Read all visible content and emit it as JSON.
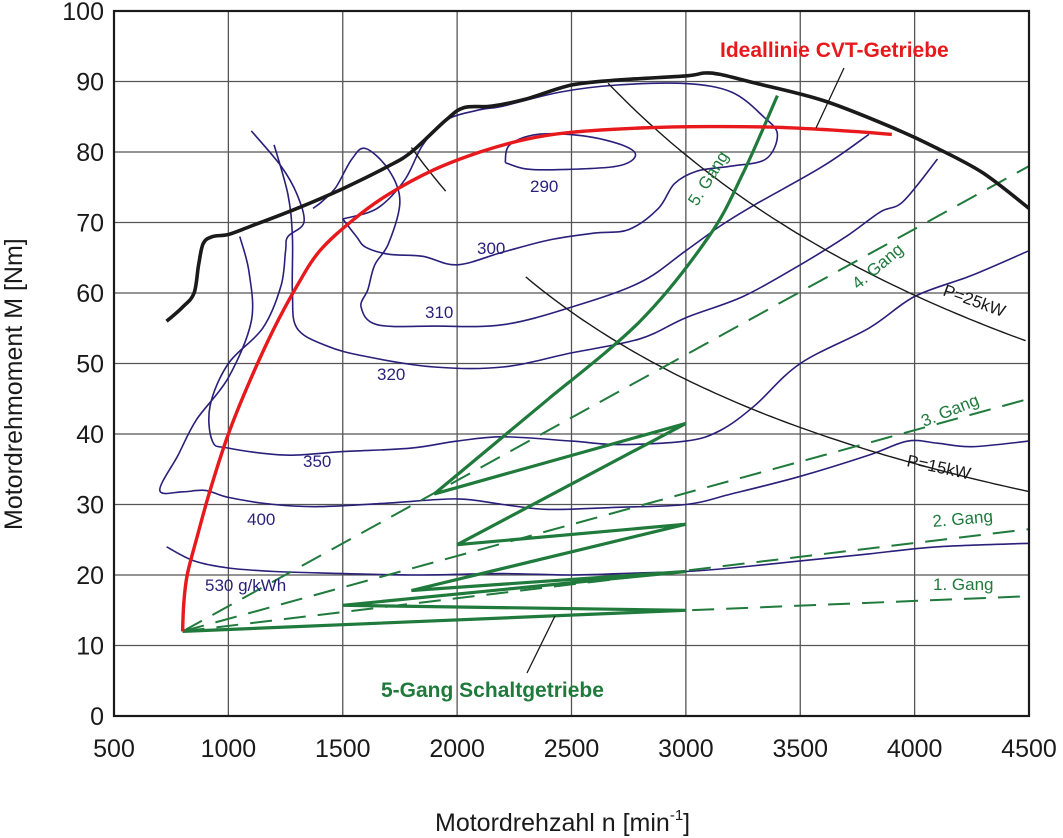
{
  "chart_data": {
    "type": "line",
    "title": "",
    "xlabel": "Motordrehzahl n   [min⁻¹]",
    "xlabel_main": "Motordrehzahl n   [min",
    "xlabel_sup": "-1",
    "xlabel_end": "]",
    "ylabel": "Motordrehmoment M   [Nm]",
    "xlim": [
      500,
      4500
    ],
    "ylim": [
      0,
      100
    ],
    "grid": true,
    "x_ticks": [
      500,
      1000,
      1500,
      2000,
      2500,
      3000,
      3500,
      4000,
      4500
    ],
    "y_ticks": [
      0,
      10,
      20,
      30,
      40,
      50,
      60,
      70,
      80,
      90,
      100
    ],
    "colors": {
      "full_load": "#1a1a1a",
      "cvt": "#e8191c",
      "contour": "#2a1f7a",
      "gear": "#1f7a3c",
      "power": "#1a1a1a",
      "grid": "#555555"
    },
    "full_load_curve": {
      "name": "Volllast",
      "points": [
        [
          730,
          56
        ],
        [
          800,
          58
        ],
        [
          850,
          60
        ],
        [
          870,
          64
        ],
        [
          890,
          67
        ],
        [
          930,
          68
        ],
        [
          1000,
          68.3
        ],
        [
          1100,
          69.5
        ],
        [
          1300,
          72
        ],
        [
          1500,
          74.8
        ],
        [
          1700,
          78
        ],
        [
          1800,
          80
        ],
        [
          1950,
          84.5
        ],
        [
          2030,
          86.3
        ],
        [
          2150,
          86.5
        ],
        [
          2300,
          87.5
        ],
        [
          2500,
          89.5
        ],
        [
          2700,
          90.2
        ],
        [
          3000,
          90.8
        ],
        [
          3080,
          91.2
        ],
        [
          3150,
          91
        ],
        [
          3300,
          89.8
        ],
        [
          3600,
          87.3
        ],
        [
          3900,
          83.5
        ],
        [
          4100,
          80.5
        ],
        [
          4300,
          77
        ],
        [
          4500,
          72
        ]
      ]
    },
    "cvt_ideal_line": {
      "name": "Ideallinie CVT-Getriebe",
      "points": [
        [
          800,
          12
        ],
        [
          805,
          16
        ],
        [
          820,
          20
        ],
        [
          860,
          25
        ],
        [
          920,
          32
        ],
        [
          1000,
          40
        ],
        [
          1100,
          48
        ],
        [
          1200,
          55
        ],
        [
          1300,
          61
        ],
        [
          1400,
          66
        ],
        [
          1550,
          70.5
        ],
        [
          1700,
          74
        ],
        [
          1900,
          77.5
        ],
        [
          2100,
          80
        ],
        [
          2300,
          81.8
        ],
        [
          2500,
          82.8
        ],
        [
          2800,
          83.4
        ],
        [
          3100,
          83.6
        ],
        [
          3400,
          83.5
        ],
        [
          3700,
          83
        ],
        [
          3900,
          82.5
        ]
      ]
    },
    "bsfc_contours": [
      {
        "label": "290",
        "closed": true,
        "points": [
          [
            2210,
            78.5
          ],
          [
            2230,
            81
          ],
          [
            2350,
            82.5
          ],
          [
            2550,
            82.3
          ],
          [
            2720,
            81
          ],
          [
            2780,
            79.5
          ],
          [
            2700,
            78
          ],
          [
            2450,
            77.5
          ],
          [
            2300,
            77.6
          ],
          [
            2210,
            78.5
          ]
        ]
      },
      {
        "label": "300",
        "closed": false,
        "points": [
          [
            1500,
            70.5
          ],
          [
            1650,
            72
          ],
          [
            1770,
            76
          ],
          [
            1850,
            81
          ],
          [
            1950,
            84.5
          ],
          [
            2100,
            86
          ],
          [
            2200,
            86.5
          ],
          [
            2450,
            88.5
          ],
          [
            2700,
            89.5
          ],
          [
            3000,
            89.7
          ],
          [
            3200,
            88.5
          ],
          [
            3340,
            85
          ],
          [
            3400,
            82.5
          ],
          [
            3350,
            79
          ],
          [
            3200,
            78
          ],
          [
            3050,
            77.3
          ],
          [
            2950,
            75.5
          ],
          [
            2880,
            72
          ],
          [
            2750,
            69
          ],
          [
            2600,
            68.5
          ],
          [
            2400,
            67.5
          ],
          [
            2200,
            65.8
          ],
          [
            2000,
            64
          ],
          [
            1850,
            65.2
          ],
          [
            1700,
            65.5
          ],
          [
            1600,
            66.5
          ],
          [
            1560,
            68
          ],
          [
            1500,
            70.5
          ]
        ]
      },
      {
        "label": "310",
        "closed": false,
        "points": [
          [
            1370,
            72
          ],
          [
            1410,
            73
          ],
          [
            1470,
            75
          ],
          [
            1540,
            79
          ],
          [
            1600,
            80.5
          ],
          [
            1700,
            77.5
          ],
          [
            1750,
            73
          ],
          [
            1700,
            67
          ],
          [
            1640,
            64
          ],
          [
            1610,
            60.5
          ],
          [
            1580,
            58
          ],
          [
            1650,
            55.5
          ],
          [
            1900,
            55.3
          ],
          [
            2200,
            55.5
          ],
          [
            2500,
            58
          ],
          [
            2800,
            61.5
          ],
          [
            3000,
            66
          ],
          [
            3150,
            69.5
          ],
          [
            3300,
            72.5
          ],
          [
            3600,
            78
          ],
          [
            3800,
            82.5
          ]
        ]
      },
      {
        "label": "320",
        "closed": false,
        "points": [
          [
            1200,
            81
          ],
          [
            1260,
            74
          ],
          [
            1280,
            68
          ],
          [
            1280,
            60
          ],
          [
            1300,
            55
          ],
          [
            1430,
            52.5
          ],
          [
            1600,
            51
          ],
          [
            1900,
            49.5
          ],
          [
            2200,
            49.5
          ],
          [
            2500,
            51.5
          ],
          [
            2800,
            53.5
          ],
          [
            3000,
            56.5
          ],
          [
            3250,
            59.5
          ],
          [
            3500,
            64
          ],
          [
            3700,
            68
          ],
          [
            3850,
            71.5
          ],
          [
            3950,
            73
          ],
          [
            4100,
            79
          ]
        ]
      },
      {
        "label": "350",
        "closed": false,
        "points": [
          [
            1100,
            83
          ],
          [
            1230,
            78
          ],
          [
            1300,
            74
          ],
          [
            1330,
            70
          ],
          [
            1260,
            68
          ],
          [
            1250,
            66
          ],
          [
            1230,
            61
          ],
          [
            1150,
            55
          ],
          [
            1000,
            50
          ],
          [
            920,
            44
          ],
          [
            930,
            39
          ],
          [
            1000,
            38
          ],
          [
            1250,
            37
          ],
          [
            1500,
            37.5
          ],
          [
            1800,
            38
          ],
          [
            2000,
            39
          ],
          [
            2200,
            39.6
          ],
          [
            2500,
            39
          ],
          [
            2700,
            38.5
          ],
          [
            3000,
            39
          ],
          [
            3150,
            40.5
          ],
          [
            3300,
            44
          ],
          [
            3500,
            50
          ],
          [
            3800,
            55
          ],
          [
            4000,
            59.5
          ],
          [
            4250,
            62.5
          ],
          [
            4500,
            66
          ]
        ]
      },
      {
        "label": "400",
        "closed": false,
        "points": [
          [
            1050,
            68
          ],
          [
            1090,
            63
          ],
          [
            1100,
            56
          ],
          [
            1000,
            48
          ],
          [
            860,
            42
          ],
          [
            780,
            37
          ],
          [
            700,
            32
          ],
          [
            800,
            31.8
          ],
          [
            900,
            32
          ],
          [
            1000,
            31
          ],
          [
            1200,
            30
          ],
          [
            1400,
            29.7
          ],
          [
            1700,
            30.2
          ],
          [
            2000,
            30.8
          ],
          [
            2200,
            30
          ],
          [
            2400,
            29.3
          ],
          [
            2700,
            29.6
          ],
          [
            3000,
            30
          ],
          [
            3200,
            31.5
          ],
          [
            3500,
            34
          ],
          [
            3800,
            37
          ],
          [
            3970,
            39
          ],
          [
            4100,
            38.7
          ],
          [
            4250,
            38.2
          ],
          [
            4500,
            39
          ]
        ]
      },
      {
        "label": "530 g/kWh",
        "closed": false,
        "points": [
          [
            730,
            24
          ],
          [
            850,
            22
          ],
          [
            1000,
            21
          ],
          [
            1200,
            20.5
          ],
          [
            1400,
            20.3
          ],
          [
            1800,
            20
          ],
          [
            2200,
            20.2
          ],
          [
            2500,
            20
          ],
          [
            2800,
            20.3
          ],
          [
            3000,
            20.5
          ],
          [
            3200,
            21
          ],
          [
            3500,
            22
          ],
          [
            3800,
            23
          ],
          [
            4100,
            24
          ],
          [
            4500,
            24.5
          ]
        ]
      }
    ],
    "power_hyperbolas": [
      {
        "label": "P=15kW",
        "power_kw": 15,
        "x_range": [
          2300,
          4500
        ]
      },
      {
        "label": "P=25kW",
        "power_kw": 25,
        "x_range": [
          2660,
          4500
        ]
      },
      {
        "label": "",
        "power_kw": 15.2,
        "x_range": [
          1800,
          1950
        ],
        "note": "upper segment near 300 label"
      }
    ],
    "gear_lines": [
      {
        "label": "1. Gang",
        "torque_at_800": 12,
        "torque_at_4500": 17
      },
      {
        "label": "2. Gang",
        "torque_at_800": 12,
        "torque_at_4500": 26.5
      },
      {
        "label": "3. Gang",
        "torque_at_800": 12,
        "torque_at_4500": 45
      },
      {
        "label": "4. Gang",
        "torque_at_800": 12,
        "torque_at_4500": 78
      },
      {
        "label": "5. Gang",
        "torque_at_800": 12,
        "torque_at_4500": 88
      }
    ],
    "five_speed_shift_path": {
      "name": "5-Gang Schaltgetriebe",
      "points": [
        [
          800,
          12
        ],
        [
          3000,
          15
        ],
        [
          1500,
          15.7
        ],
        [
          3000,
          20.5
        ],
        [
          1800,
          17.8
        ],
        [
          3000,
          27.2
        ],
        [
          2000,
          24.3
        ],
        [
          3000,
          41.5
        ],
        [
          1900,
          31.5
        ],
        [
          2400,
          45
        ],
        [
          2800,
          56
        ],
        [
          3100,
          68
        ],
        [
          3250,
          77
        ],
        [
          3400,
          88
        ]
      ]
    },
    "annotations": {
      "cvt_label": "Ideallinie CVT-Getriebe",
      "manual_label": "5-Gang Schaltgetriebe",
      "gear5_label": "5. Gang",
      "gear4_label": "4. Gang",
      "gear3_label": "3. Gang",
      "gear2_label": "2. Gang",
      "gear1_label": "1. Gang",
      "p25_label": "P=25kW",
      "p15_label": "P=15kW",
      "c290": "290",
      "c300": "300",
      "c310": "310",
      "c320": "320",
      "c350": "350",
      "c400": "400",
      "c530": "530 g/kWh"
    }
  }
}
